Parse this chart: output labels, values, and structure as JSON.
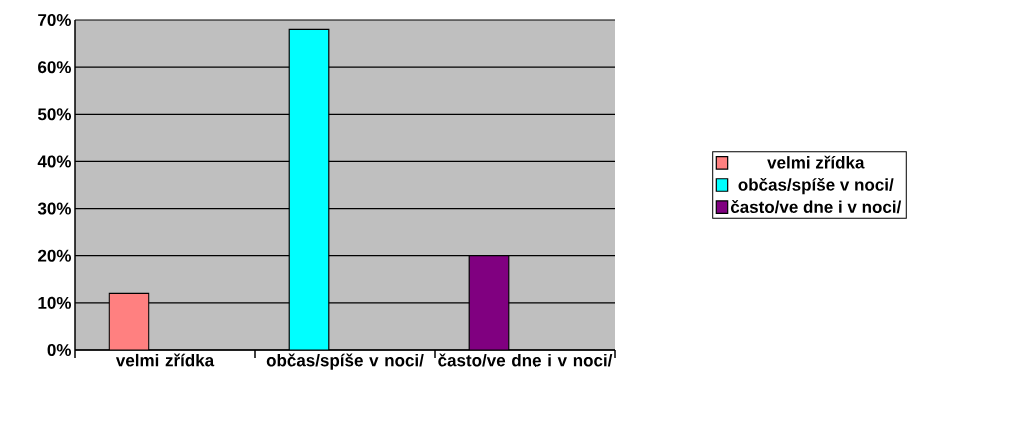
{
  "chart_data": {
    "type": "bar",
    "categories": [
      "velmi zřídka",
      "občas/spíše v noci/",
      "často/ve dne i v noci/"
    ],
    "series": [
      {
        "name": "velmi zřídka",
        "color": "#ff8080",
        "values": [
          12,
          null,
          null
        ]
      },
      {
        "name": "občas/spíše v noci/",
        "color": "#00ffff",
        "values": [
          null,
          68,
          null
        ]
      },
      {
        "name": "často/ve dne i v noci/",
        "color": "#800080",
        "values": [
          null,
          null,
          20
        ]
      }
    ],
    "ylim": [
      0,
      70
    ],
    "yticks": [
      {
        "value": 0,
        "label": "0%"
      },
      {
        "value": 10,
        "label": "10%"
      },
      {
        "value": 20,
        "label": "20%"
      },
      {
        "value": 30,
        "label": "30%"
      },
      {
        "value": 40,
        "label": "40%"
      },
      {
        "value": 50,
        "label": "50%"
      },
      {
        "value": 60,
        "label": "60%"
      },
      {
        "value": 70,
        "label": "70%"
      }
    ],
    "grid": "y",
    "legend": "right"
  }
}
